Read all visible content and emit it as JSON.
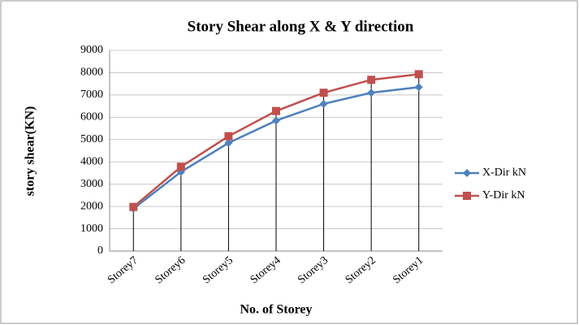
{
  "chart_data": {
    "type": "line",
    "title": "Story Shear  along X & Y direction",
    "x_label": "No. of Storey",
    "y_label": "story shear(KN)",
    "categories": [
      "Storey7",
      "Storey6",
      "Storey5",
      "Storey4",
      "Storey3",
      "Storey2",
      "Storey1"
    ],
    "series": [
      {
        "name": "X-Dir kN",
        "color": "#4f81bd",
        "values": [
          1900,
          3550,
          4850,
          5850,
          6600,
          7100,
          7350
        ]
      },
      {
        "name": "Y-Dir kN",
        "color": "#c0504d",
        "values": [
          1980,
          3780,
          5150,
          6280,
          7100,
          7680,
          7930
        ]
      }
    ],
    "ylim": [
      0,
      9000
    ],
    "yticks": [
      0,
      1000,
      2000,
      3000,
      4000,
      5000,
      6000,
      7000,
      8000,
      9000
    ],
    "grid": true,
    "drop_lines": true,
    "legend": "right"
  }
}
